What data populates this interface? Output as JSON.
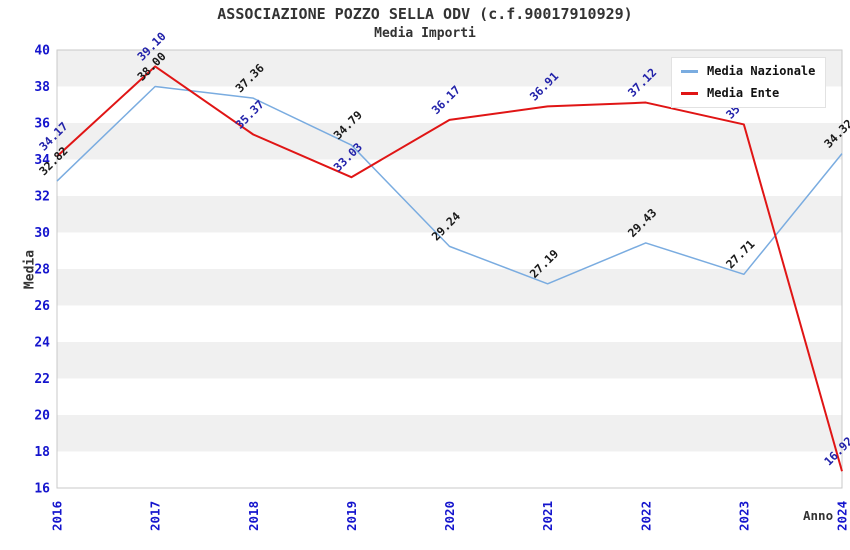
{
  "chart_data": {
    "type": "line",
    "title": "ASSOCIAZIONE POZZO SELLA ODV (c.f.90017910929)",
    "subtitle": "Media Importi",
    "xlabel": "Anno",
    "ylabel": "Media",
    "x": [
      2016,
      2017,
      2018,
      2019,
      2020,
      2021,
      2022,
      2023,
      2024
    ],
    "series": [
      {
        "name": "Media Nazionale",
        "color": "#7aace0",
        "label_color": "#1a1a1a",
        "values": [
          32.82,
          38.0,
          37.36,
          34.79,
          29.24,
          27.19,
          29.43,
          27.71,
          34.32
        ]
      },
      {
        "name": "Media Ente",
        "color": "#e01515",
        "label_color": "#2323aa",
        "values": [
          34.17,
          39.1,
          35.37,
          33.03,
          36.17,
          36.91,
          37.12,
          35.92,
          16.92
        ]
      }
    ],
    "ylim": [
      16,
      40
    ],
    "ytick_step": 2,
    "xlim_labels_rotation": -90,
    "point_label_rotation": -45,
    "legend_position": "top-right",
    "grid": "alternating-bands",
    "band_colors": [
      "#f0f0f0",
      "#ffffff"
    ],
    "plot_border_color": "#c9c9c9",
    "tick_label_color": "#1515cd",
    "text_color": "#333333"
  }
}
